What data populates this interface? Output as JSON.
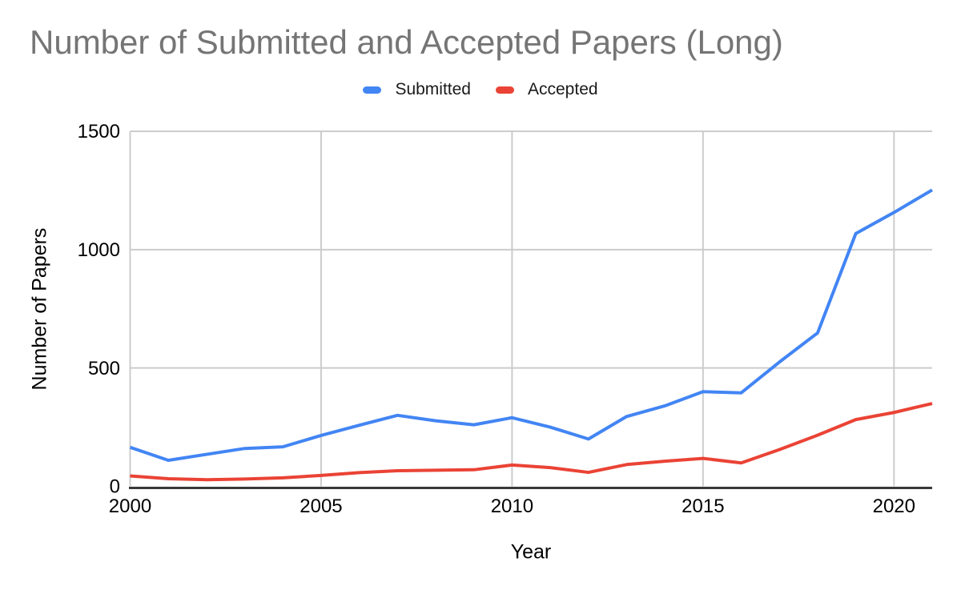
{
  "chart": {
    "title": "Number of Submitted and Accepted Papers (Long)",
    "xlabel": "Year",
    "ylabel": "Number of Papers",
    "legend": [
      {
        "label": "Submitted",
        "color": "#4285F4"
      },
      {
        "label": "Accepted",
        "color": "#EA4335"
      }
    ]
  },
  "chart_data": {
    "type": "line",
    "title": "Number of Submitted and Accepted Papers (Long)",
    "xlabel": "Year",
    "ylabel": "Number of Papers",
    "x": [
      2000,
      2001,
      2002,
      2003,
      2004,
      2005,
      2006,
      2007,
      2008,
      2009,
      2010,
      2011,
      2012,
      2013,
      2014,
      2015,
      2016,
      2017,
      2018,
      2019,
      2020,
      2021
    ],
    "series": [
      {
        "name": "Submitted",
        "color": "#4285F4",
        "values": [
          165,
          110,
          135,
          160,
          167,
          215,
          258,
          300,
          277,
          260,
          290,
          250,
          200,
          295,
          340,
          400,
          395,
          525,
          648,
          1068,
          1157,
          1252
        ]
      },
      {
        "name": "Accepted",
        "color": "#EA4335",
        "values": [
          44,
          32,
          28,
          31,
          36,
          46,
          58,
          66,
          68,
          70,
          90,
          79,
          59,
          92,
          106,
          118,
          99,
          155,
          216,
          282,
          312,
          350
        ]
      }
    ],
    "ylim": [
      0,
      1500
    ],
    "y_ticks": [
      0,
      500,
      1000,
      1500
    ],
    "x_ticks": [
      2000,
      2005,
      2010,
      2015,
      2020
    ],
    "grid": true,
    "legend_position": "top",
    "colors": {
      "gridline": "#cccccc",
      "axis": "#383838",
      "title": "#757575",
      "text": "#000000"
    }
  }
}
